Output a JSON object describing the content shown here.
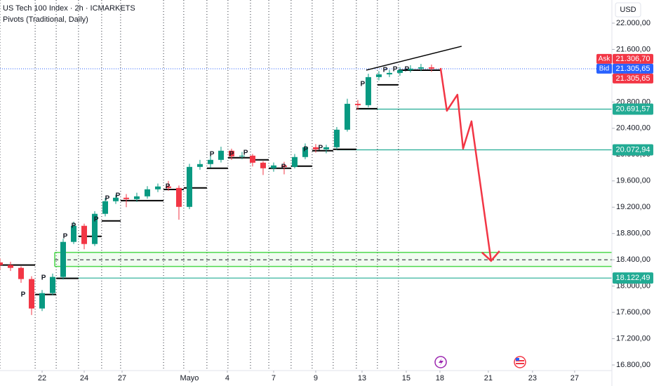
{
  "chart_data": {
    "type": "candlestick",
    "title": "US Tech 100 Index · 2h · ICMARKETS",
    "subtitle": "Pivots (Traditional, Daily)",
    "currency": "USD",
    "up_color": "#089981",
    "down_color": "#f23645",
    "xlim": [
      -2,
      27.07
    ],
    "xticks": [
      {
        "value": 0,
        "label": "22"
      },
      {
        "value": 2,
        "label": "24"
      },
      {
        "value": 3.8,
        "label": "27"
      },
      {
        "value": 7,
        "label": "Mayo"
      },
      {
        "value": 8.8,
        "label": "4"
      },
      {
        "value": 11,
        "label": "7"
      },
      {
        "value": 13,
        "label": "9"
      },
      {
        "value": 15.2,
        "label": "13"
      },
      {
        "value": 17.3,
        "label": "15"
      },
      {
        "value": 18.9,
        "label": "18"
      },
      {
        "value": 21.2,
        "label": "21"
      },
      {
        "value": 23.3,
        "label": "23"
      },
      {
        "value": 25.3,
        "label": "27"
      }
    ],
    "ylim": [
      16715,
      22352
    ],
    "yticks": [
      {
        "value": 16800,
        "label": "16.800,00"
      },
      {
        "value": 17200,
        "label": "17.200,00"
      },
      {
        "value": 17600,
        "label": "17.600,00"
      },
      {
        "value": 18000,
        "label": "18.000,00"
      },
      {
        "value": 18400,
        "label": "18.400,00"
      },
      {
        "value": 18800,
        "label": "18.800,00"
      },
      {
        "value": 19200,
        "label": "19.200,00"
      },
      {
        "value": 19600,
        "label": "19.600,00"
      },
      {
        "value": 20000,
        "label": "20.000,00"
      },
      {
        "value": 20400,
        "label": "20.400,00"
      },
      {
        "value": 20800,
        "label": "20.800,00"
      },
      {
        "value": 21200,
        "label": "21.200,00"
      },
      {
        "value": 21600,
        "label": "21.600,00"
      },
      {
        "value": 22000,
        "label": "22.000,00"
      }
    ],
    "x": [
      -2,
      -1.5,
      -1,
      -0.5,
      0,
      0.5,
      1,
      1.5,
      2,
      2.5,
      3,
      3.5,
      4,
      4.5,
      5,
      5.5,
      6,
      6.5,
      7,
      7.5,
      8,
      8.5,
      9,
      9.5,
      10,
      10.5,
      11,
      11.5,
      12,
      12.5,
      13,
      13.5,
      14,
      14.5,
      15,
      15.5,
      16,
      16.5,
      17,
      17.5,
      18,
      18.5
    ],
    "open": [
      18360,
      18320,
      18277,
      18107,
      17659,
      17893,
      18139,
      18672,
      18917,
      18640,
      19099,
      19291,
      19344,
      19323,
      19365,
      19472,
      19515,
      19493,
      19205,
      19813,
      19856,
      19920,
      20059,
      19973,
      19984,
      19877,
      19792,
      19835,
      19813,
      19963,
      20112,
      20080,
      20112,
      20379,
      20773,
      20752,
      21179,
      21221,
      21243,
      21285,
      21307,
      21328
    ],
    "high": [
      18420,
      18370,
      18300,
      18150,
      17940,
      18190,
      18720,
      18980,
      18950,
      19140,
      19340,
      19390,
      19400,
      19420,
      19520,
      19560,
      19600,
      19530,
      19860,
      19920,
      19980,
      20120,
      20090,
      20040,
      20010,
      19900,
      19880,
      19890,
      20010,
      20170,
      20160,
      20150,
      20420,
      20850,
      20830,
      21230,
      21270,
      21290,
      21330,
      21360,
      21380,
      21370
    ],
    "low": [
      18250,
      18230,
      18050,
      17560,
      17620,
      17860,
      18100,
      18640,
      18560,
      18610,
      19060,
      19250,
      19200,
      19280,
      19330,
      19430,
      19450,
      19010,
      19170,
      19770,
      19800,
      19880,
      19920,
      19930,
      19820,
      19690,
      19740,
      19700,
      19790,
      19930,
      20030,
      20020,
      20080,
      20350,
      20680,
      20720,
      21130,
      21180,
      21200,
      21250,
      21270,
      21260
    ],
    "close": [
      18320,
      18277,
      18107,
      17659,
      17893,
      18139,
      18672,
      18917,
      18640,
      19099,
      19291,
      19344,
      19323,
      19365,
      19472,
      19515,
      19493,
      19205,
      19813,
      19856,
      19920,
      20059,
      19973,
      19984,
      19877,
      19792,
      19835,
      19813,
      19963,
      20112,
      20080,
      20112,
      20379,
      20773,
      20752,
      21179,
      21221,
      21243,
      21285,
      21307,
      21328,
      21306
    ],
    "pivot_levels": [
      {
        "start": -2,
        "end": -0.33,
        "value": 18320
      },
      {
        "start": -0.33,
        "end": 0.67,
        "value": 17872
      },
      {
        "start": 0.67,
        "end": 1.73,
        "value": 18117
      },
      {
        "start": 1.73,
        "end": 2.83,
        "value": 18757
      },
      {
        "start": 2.83,
        "end": 3.73,
        "value": 18992
      },
      {
        "start": 3.73,
        "end": 5.77,
        "value": 19300
      },
      {
        "start": 5.77,
        "end": 6.73,
        "value": 19470
      },
      {
        "start": 6.73,
        "end": 7.83,
        "value": 19493
      },
      {
        "start": 7.83,
        "end": 8.83,
        "value": 19792
      },
      {
        "start": 8.83,
        "end": 9.9,
        "value": 19952
      },
      {
        "start": 9.9,
        "end": 10.77,
        "value": 19920
      },
      {
        "start": 10.77,
        "end": 11.83,
        "value": 19792
      },
      {
        "start": 11.83,
        "end": 12.83,
        "value": 19824
      },
      {
        "start": 12.83,
        "end": 13.83,
        "value": 20059
      },
      {
        "start": 13.83,
        "end": 14.93,
        "value": 20080
      },
      {
        "start": 14.93,
        "end": 15.93,
        "value": 20699
      },
      {
        "start": 15.93,
        "end": 16.93,
        "value": 21061
      },
      {
        "start": 16.93,
        "end": 18.93,
        "value": 21285
      }
    ],
    "pivot_markers": [
      {
        "x": -0.9,
        "y": 17872,
        "label": "P"
      },
      {
        "x": 0.07,
        "y": 18128,
        "label": "P"
      },
      {
        "x": 1.1,
        "y": 18757,
        "label": "P"
      },
      {
        "x": 1.5,
        "y": 18917,
        "label": "P"
      },
      {
        "x": 2.57,
        "y": 19013,
        "label": "P"
      },
      {
        "x": 3.1,
        "y": 19333,
        "label": "P"
      },
      {
        "x": 3.6,
        "y": 19376,
        "label": "P"
      },
      {
        "x": 5.97,
        "y": 19515,
        "label": "P"
      },
      {
        "x": 8.07,
        "y": 20005,
        "label": "P"
      },
      {
        "x": 9.0,
        "y": 20005,
        "label": "P"
      },
      {
        "x": 9.67,
        "y": 20027,
        "label": "P"
      },
      {
        "x": 11.47,
        "y": 19813,
        "label": "P"
      },
      {
        "x": 12.53,
        "y": 20080,
        "label": "P"
      },
      {
        "x": 13.23,
        "y": 20101,
        "label": "P"
      },
      {
        "x": 15.23,
        "y": 21072,
        "label": "P"
      },
      {
        "x": 16.3,
        "y": 21285,
        "label": "P"
      },
      {
        "x": 16.77,
        "y": 21296,
        "label": "P"
      },
      {
        "x": 17.33,
        "y": 21296,
        "label": "P"
      }
    ],
    "levels": [
      {
        "start": 15,
        "value": 20691.57,
        "label": "20.691,57",
        "color": "#22ab94"
      },
      {
        "start": 14,
        "value": 20072.94,
        "label": "20.072,94",
        "color": "#22ab94"
      },
      {
        "start": 0.67,
        "value": 18122.49,
        "label": "18.122,49",
        "color": "#22ab94"
      }
    ],
    "zone": {
      "start": 0.6,
      "top": 18512,
      "bottom": 18299,
      "mid": 18400,
      "color": "#4cd94c"
    },
    "trendline": {
      "x": [
        15.4,
        19.93
      ],
      "y": [
        21285,
        21648
      ],
      "color": "#000000"
    },
    "projection": {
      "x": [
        18.93,
        19.23,
        19.73,
        20,
        20.4,
        21.33
      ],
      "y": [
        21317,
        20667,
        20912,
        20091,
        20507,
        18384
      ],
      "color": "#f23645"
    },
    "quotes": [
      {
        "tag": "Ask",
        "value": 21306.7,
        "label": "21.306,70",
        "color": "#f23645"
      },
      {
        "tag": "Bid",
        "value": 21305.65,
        "label": "21.305,65",
        "color": "#2962ff"
      },
      {
        "value": 21305.65,
        "label": "21.305,65",
        "color": "#f23645"
      }
    ]
  }
}
